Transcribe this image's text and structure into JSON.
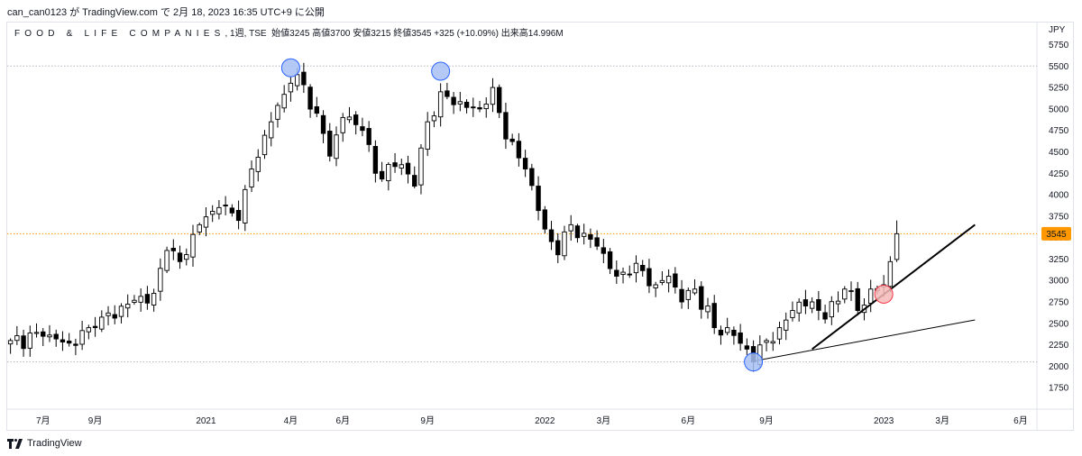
{
  "header": {
    "author": "can_can0123",
    "text": "can_can0123 が TradingView.com で 2月 18, 2023 16:35 UTC+9 に公開"
  },
  "legend": {
    "symbol": "FOOD & LIFE COMPANIES",
    "timeframe": ", 1週, TSE",
    "ohlc": "始値3245 高値3700 安値3215 終値3545 +325 (+10.09%) 出来高14.996M"
  },
  "currency": "JPY",
  "brand": "TradingView",
  "colors": {
    "up_candle_fill": "#ffffff",
    "down_candle_fill": "#000000",
    "candle_border": "#000000",
    "last_price": "#ff9800",
    "level_line": "#b2b5be",
    "marker_blue": "#a7c0f5",
    "marker_red": "#f7b8b8"
  },
  "chart_data": {
    "type": "candlestick",
    "timeframe": "weekly",
    "y_axis": {
      "ticks": [
        1750,
        2000,
        2250,
        2500,
        2750,
        3000,
        3250,
        3500,
        3750,
        4000,
        4250,
        4500,
        4750,
        5000,
        5250,
        5500,
        5750
      ],
      "range": [
        1500,
        5850
      ]
    },
    "x_axis": {
      "ticks": [
        {
          "label": "7月",
          "index": 5
        },
        {
          "label": "9月",
          "index": 13
        },
        {
          "label": "2021",
          "index": 30
        },
        {
          "label": "4月",
          "index": 43
        },
        {
          "label": "6月",
          "index": 51
        },
        {
          "label": "9月",
          "index": 64
        },
        {
          "label": "2022",
          "index": 82
        },
        {
          "label": "3月",
          "index": 91
        },
        {
          "label": "6月",
          "index": 104
        },
        {
          "label": "9月",
          "index": 116
        },
        {
          "label": "2023",
          "index": 134
        },
        {
          "label": "3月",
          "index": 143
        },
        {
          "label": "6月",
          "index": 155
        }
      ],
      "bar_count_visible": 158
    },
    "price_path": [
      [
        0,
        2300
      ],
      [
        5,
        2350
      ],
      [
        9,
        2270
      ],
      [
        13,
        2450
      ],
      [
        17,
        2700
      ],
      [
        22,
        2850
      ],
      [
        24,
        3350
      ],
      [
        26,
        3220
      ],
      [
        29,
        3650
      ],
      [
        32,
        3850
      ],
      [
        35,
        3700
      ],
      [
        37,
        4300
      ],
      [
        40,
        4850
      ],
      [
        43,
        5300
      ],
      [
        44,
        5400
      ],
      [
        47,
        4950
      ],
      [
        49,
        4450
      ],
      [
        51,
        4900
      ],
      [
        54,
        4750
      ],
      [
        56,
        4250
      ],
      [
        60,
        4350
      ],
      [
        62,
        4100
      ],
      [
        64,
        4850
      ],
      [
        66,
        5200
      ],
      [
        68,
        5050
      ],
      [
        72,
        5000
      ],
      [
        74,
        5250
      ],
      [
        76,
        4650
      ],
      [
        79,
        4300
      ],
      [
        82,
        3600
      ],
      [
        84,
        3300
      ],
      [
        86,
        3650
      ],
      [
        88,
        3550
      ],
      [
        90,
        3400
      ],
      [
        93,
        3050
      ],
      [
        96,
        3200
      ],
      [
        99,
        2950
      ],
      [
        101,
        3050
      ],
      [
        103,
        2750
      ],
      [
        105,
        2900
      ],
      [
        108,
        2450
      ],
      [
        110,
        2450
      ],
      [
        113,
        2200
      ],
      [
        114,
        2050
      ],
      [
        116,
        2300
      ],
      [
        118,
        2450
      ],
      [
        120,
        2650
      ],
      [
        123,
        2750
      ],
      [
        125,
        2550
      ],
      [
        128,
        2900
      ],
      [
        130,
        2650
      ],
      [
        132,
        2900
      ],
      [
        134,
        2950
      ],
      [
        135,
        3220
      ],
      [
        136,
        3545
      ]
    ],
    "last_bar": {
      "open": 3245,
      "high": 3700,
      "low": 3215,
      "close": 3545,
      "volume": "14.996M"
    },
    "last_price_label": "3545",
    "horizontal_levels": [
      5500,
      2050,
      3545
    ],
    "trendlines": [
      {
        "from": [
          123,
          2200
        ],
        "to": [
          148,
          3650
        ],
        "weight": "bold"
      },
      {
        "from": [
          114,
          2060
        ],
        "to": [
          148,
          2540
        ],
        "weight": "thin"
      }
    ],
    "markers": [
      {
        "index": 43,
        "value": 5480,
        "color": "blue"
      },
      {
        "index": 66,
        "value": 5440,
        "color": "blue"
      },
      {
        "index": 114,
        "value": 2050,
        "color": "blue"
      },
      {
        "index": 134,
        "value": 2840,
        "color": "red"
      }
    ]
  }
}
